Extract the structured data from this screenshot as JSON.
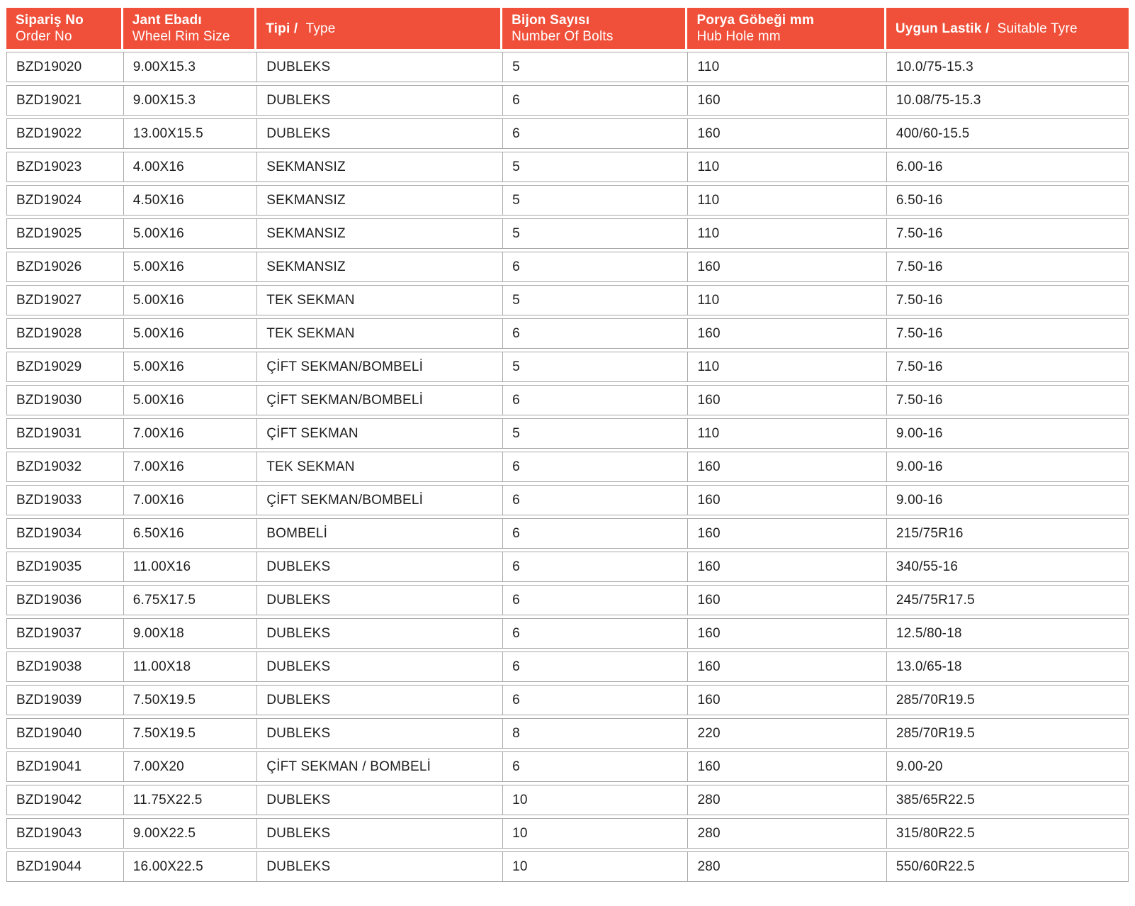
{
  "colors": {
    "header_bg": "#F0503A",
    "header_text": "#FFFFFF",
    "cell_border": "#A8A8A8",
    "cell_text": "#1E1E1E"
  },
  "table": {
    "columns": [
      {
        "tr": "Sipariş No",
        "en": "Order No"
      },
      {
        "tr": "Jant Ebadı",
        "en": "Wheel Rim Size"
      },
      {
        "tr": "Tipi /",
        "en": "Type"
      },
      {
        "tr": "Bijon Sayısı",
        "en": "Number Of Bolts"
      },
      {
        "tr": "Porya Göbeği mm",
        "en": "Hub Hole mm"
      },
      {
        "tr": "Uygun Lastik /",
        "en": "Suitable Tyre"
      }
    ],
    "rows": [
      [
        "BZD19020",
        "9.00X15.3",
        "DUBLEKS",
        "5",
        "110",
        "10.0/75-15.3"
      ],
      [
        "BZD19021",
        "9.00X15.3",
        "DUBLEKS",
        "6",
        "160",
        "10.08/75-15.3"
      ],
      [
        "BZD19022",
        "13.00X15.5",
        "DUBLEKS",
        "6",
        "160",
        "400/60-15.5"
      ],
      [
        "BZD19023",
        "4.00X16",
        "SEKMANSIZ",
        "5",
        "110",
        "6.00-16"
      ],
      [
        "BZD19024",
        "4.50X16",
        "SEKMANSIZ",
        "5",
        "110",
        "6.50-16"
      ],
      [
        "BZD19025",
        "5.00X16",
        "SEKMANSIZ",
        "5",
        "110",
        "7.50-16"
      ],
      [
        "BZD19026",
        "5.00X16",
        "SEKMANSIZ",
        "6",
        "160",
        "7.50-16"
      ],
      [
        "BZD19027",
        "5.00X16",
        "TEK SEKMAN",
        "5",
        "110",
        "7.50-16"
      ],
      [
        "BZD19028",
        "5.00X16",
        "TEK SEKMAN",
        "6",
        "160",
        "7.50-16"
      ],
      [
        "BZD19029",
        "5.00X16",
        "ÇİFT SEKMAN/BOMBELİ",
        "5",
        "110",
        "7.50-16"
      ],
      [
        "BZD19030",
        "5.00X16",
        "ÇİFT SEKMAN/BOMBELİ",
        "6",
        "160",
        "7.50-16"
      ],
      [
        "BZD19031",
        "7.00X16",
        "ÇİFT SEKMAN",
        "5",
        "110",
        "9.00-16"
      ],
      [
        "BZD19032",
        "7.00X16",
        "TEK SEKMAN",
        "6",
        "160",
        "9.00-16"
      ],
      [
        "BZD19033",
        "7.00X16",
        "ÇİFT SEKMAN/BOMBELİ",
        "6",
        "160",
        "9.00-16"
      ],
      [
        "BZD19034",
        "6.50X16",
        "BOMBELİ",
        "6",
        "160",
        "215/75R16"
      ],
      [
        "BZD19035",
        "11.00X16",
        "DUBLEKS",
        "6",
        "160",
        "340/55-16"
      ],
      [
        "BZD19036",
        "6.75X17.5",
        "DUBLEKS",
        "6",
        "160",
        "245/75R17.5"
      ],
      [
        "BZD19037",
        "9.00X18",
        "DUBLEKS",
        "6",
        "160",
        "12.5/80-18"
      ],
      [
        "BZD19038",
        "11.00X18",
        "DUBLEKS",
        "6",
        "160",
        "13.0/65-18"
      ],
      [
        "BZD19039",
        "7.50X19.5",
        "DUBLEKS",
        "6",
        "160",
        "285/70R19.5"
      ],
      [
        "BZD19040",
        "7.50X19.5",
        "DUBLEKS",
        "8",
        "220",
        "285/70R19.5"
      ],
      [
        "BZD19041",
        "7.00X20",
        "ÇİFT SEKMAN / BOMBELİ",
        "6",
        "160",
        "9.00-20"
      ],
      [
        "BZD19042",
        "11.75X22.5",
        "DUBLEKS",
        "10",
        "280",
        "385/65R22.5"
      ],
      [
        "BZD19043",
        "9.00X22.5",
        "DUBLEKS",
        "10",
        "280",
        "315/80R22.5"
      ],
      [
        "BZD19044",
        "16.00X22.5",
        "DUBLEKS",
        "10",
        "280",
        "550/60R22.5"
      ]
    ]
  }
}
